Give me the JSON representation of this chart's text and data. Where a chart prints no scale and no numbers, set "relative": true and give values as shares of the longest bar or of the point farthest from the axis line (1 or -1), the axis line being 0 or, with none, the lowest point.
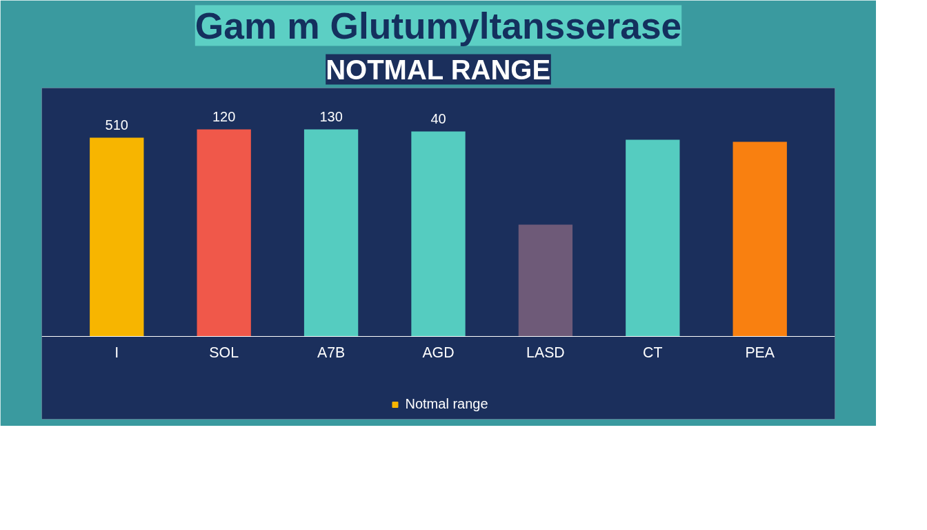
{
  "chart_data": {
    "type": "bar",
    "title": "Gam m Glutumyltansserase",
    "subtitle": "NOTMAL RANGE",
    "relative": true,
    "categories": [
      "I",
      "SOL",
      "A7B",
      "AGD",
      "LASD",
      "CT",
      "PEA"
    ],
    "series": [
      {
        "name": "Notmal range",
        "color": "#f7b500",
        "colors": [
          "#f7b500",
          "#f0584a",
          "#55ccc0",
          "#55ccc0",
          "#6e5a78",
          "#55ccc0",
          "#f98010"
        ],
        "values": [
          0.96,
          1,
          1,
          0.99,
          0.54,
          0.95,
          0.94
        ]
      }
    ],
    "value_labels": [
      "510",
      "120",
      "130",
      "40",
      null,
      null,
      null
    ],
    "legend": "bottom",
    "grid": false
  }
}
